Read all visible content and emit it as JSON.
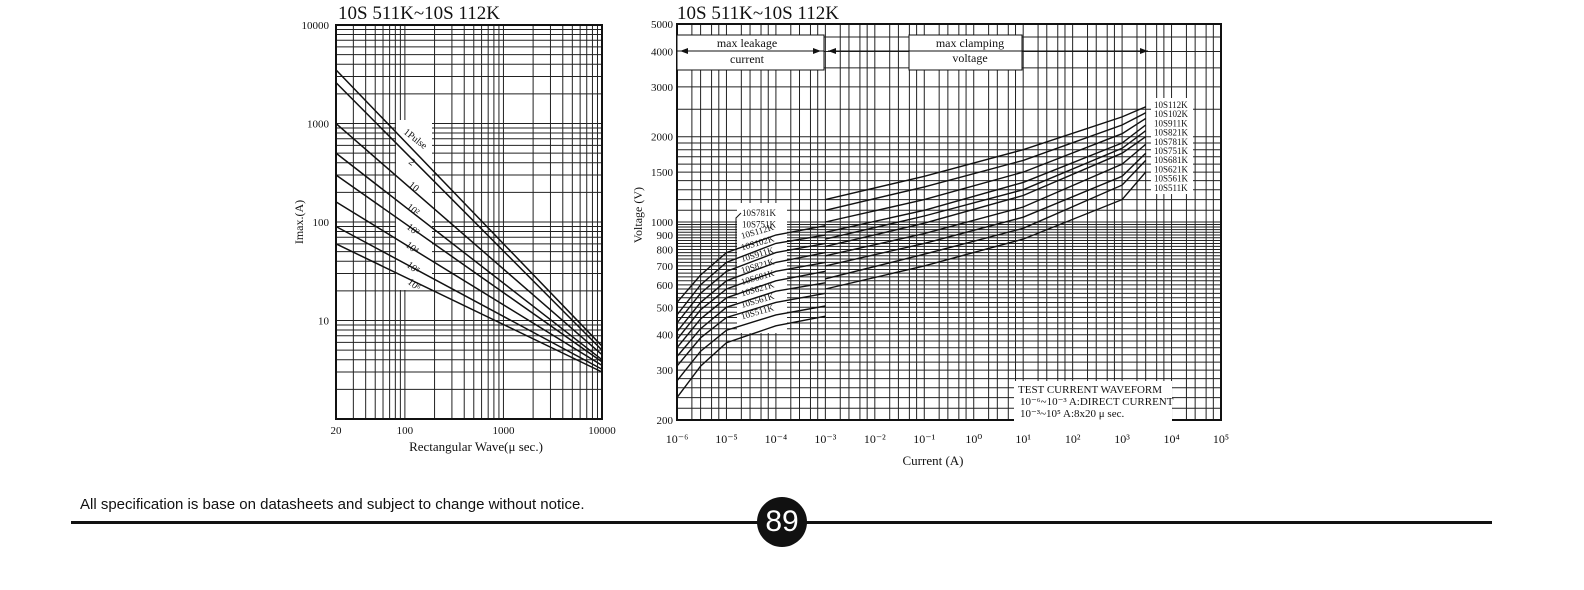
{
  "page": {
    "footer_note": "All specification is base on datasheets and subject to change without notice.",
    "page_number": "89"
  },
  "chart_data": [
    {
      "type": "line",
      "title": "10S  511K~10S  112K",
      "xlabel": "Rectangular Wave(μ  sec.)",
      "ylabel": "Imax.(A)",
      "xscale": "log",
      "yscale": "log",
      "xlim": [
        20,
        10000
      ],
      "ylim": [
        1,
        10000
      ],
      "xticks": [
        20,
        100,
        1000,
        10000
      ],
      "xtick_labels": [
        "20",
        "100",
        "1000",
        "10000"
      ],
      "yticks": [
        10,
        100,
        1000,
        10000
      ],
      "ytick_labels": [
        "10",
        "100",
        "1000",
        "10000"
      ],
      "grid": true,
      "series": [
        {
          "name": "1Pulse",
          "x": [
            20,
            10000
          ],
          "y": [
            3500,
            5.5
          ]
        },
        {
          "name": "2",
          "x": [
            20,
            10000
          ],
          "y": [
            2600,
            5
          ]
        },
        {
          "name": "10",
          "x": [
            20,
            10000
          ],
          "y": [
            1000,
            4.5
          ]
        },
        {
          "name": "10²",
          "x": [
            20,
            10000
          ],
          "y": [
            500,
            4
          ]
        },
        {
          "name": "10³",
          "x": [
            20,
            10000
          ],
          "y": [
            300,
            3.8
          ]
        },
        {
          "name": "10⁴",
          "x": [
            20,
            10000
          ],
          "y": [
            160,
            3.5
          ]
        },
        {
          "name": "10⁵",
          "x": [
            20,
            10000
          ],
          "y": [
            90,
            3.2
          ]
        },
        {
          "name": "10⁶",
          "x": [
            20,
            10000
          ],
          "y": [
            60,
            3
          ]
        }
      ]
    },
    {
      "type": "line",
      "title": "10S  511K~10S  112K",
      "xlabel": "Current (A)",
      "ylabel": "Voltage (V)",
      "xscale": "log",
      "yscale": "log",
      "xlim": [
        1e-06,
        100000
      ],
      "ylim": [
        200,
        5000
      ],
      "xtick_labels": [
        "10⁻⁶",
        "10⁻⁵",
        "10⁻⁴",
        "10⁻³",
        "10⁻²",
        "10⁻¹",
        "10⁰",
        "10¹",
        "10²",
        "10³",
        "10⁴",
        "10⁵"
      ],
      "yticks": [
        200,
        300,
        400,
        500,
        600,
        700,
        800,
        900,
        1000,
        1500,
        2000,
        3000,
        4000,
        5000
      ],
      "ytick_labels": [
        "200",
        "300",
        "400",
        "500",
        "600",
        "700",
        "800",
        "900",
        "1000",
        "1500",
        "2000",
        "3000",
        "4000",
        "5000"
      ],
      "grid": true,
      "annotations": {
        "max_leakage": [
          "max leakage",
          "current"
        ],
        "max_clamping": [
          "max clamping",
          "voltage"
        ],
        "test_waveform": [
          "TEST  CURRENT  WAVEFORM",
          "10⁻⁶~10⁻³  A:DIRECT  CURRENT",
          "10⁻³~10⁵  A:8x20  μ sec."
        ]
      },
      "leakage_series": [
        {
          "name": "10S781K",
          "x": [
            1e-06,
            3e-06,
            1e-05,
            0.0001,
            0.001
          ],
          "y": [
            520,
            650,
            780,
            900,
            970
          ]
        },
        {
          "name": "10S751K",
          "x": [
            1e-06,
            3e-06,
            1e-05,
            0.0001,
            0.001
          ],
          "y": [
            470,
            600,
            720,
            840,
            900
          ]
        },
        {
          "name": "10S112K",
          "x": [
            1e-06,
            3e-06,
            1e-05,
            0.0001,
            0.001
          ],
          "y": [
            440,
            560,
            670,
            780,
            840
          ]
        },
        {
          "name": "10S102K",
          "x": [
            1e-06,
            3e-06,
            1e-05,
            0.0001,
            0.001
          ],
          "y": [
            410,
            520,
            620,
            720,
            780
          ]
        },
        {
          "name": "10S911K",
          "x": [
            1e-06,
            3e-06,
            1e-05,
            0.0001,
            0.001
          ],
          "y": [
            385,
            490,
            580,
            670,
            720
          ]
        },
        {
          "name": "10S821K",
          "x": [
            1e-06,
            3e-06,
            1e-05,
            0.0001,
            0.001
          ],
          "y": [
            360,
            455,
            540,
            620,
            670
          ]
        },
        {
          "name": "10S681K",
          "x": [
            1e-06,
            3e-06,
            1e-05,
            0.0001,
            0.001
          ],
          "y": [
            335,
            420,
            500,
            570,
            610
          ]
        },
        {
          "name": "10S621K",
          "x": [
            1e-06,
            3e-06,
            1e-05,
            0.0001,
            0.001
          ],
          "y": [
            310,
            390,
            460,
            520,
            560
          ]
        },
        {
          "name": "10S561K",
          "x": [
            1e-06,
            3e-06,
            1e-05,
            0.0001,
            0.001
          ],
          "y": [
            275,
            350,
            415,
            470,
            505
          ]
        },
        {
          "name": "10S511K",
          "x": [
            1e-06,
            3e-06,
            1e-05,
            0.0001,
            0.001
          ],
          "y": [
            240,
            310,
            375,
            430,
            465
          ]
        }
      ],
      "clamping_series": [
        {
          "name": "10S112K",
          "x": [
            0.001,
            0.1,
            10,
            1000,
            3000
          ],
          "y": [
            1200,
            1450,
            1800,
            2350,
            2550
          ]
        },
        {
          "name": "10S102K",
          "x": [
            0.001,
            0.1,
            10,
            1000,
            3000
          ],
          "y": [
            1100,
            1330,
            1650,
            2200,
            2430
          ]
        },
        {
          "name": "10S911K",
          "x": [
            0.001,
            0.1,
            10,
            1000,
            3000
          ],
          "y": [
            1000,
            1200,
            1500,
            2050,
            2320
          ]
        },
        {
          "name": "10S821K",
          "x": [
            0.001,
            0.1,
            10,
            1000,
            3000
          ],
          "y": [
            920,
            1100,
            1380,
            1900,
            2200
          ]
        },
        {
          "name": "10S781K",
          "x": [
            0.001,
            0.1,
            10,
            1000,
            3000
          ],
          "y": [
            870,
            1050,
            1300,
            1820,
            2100
          ]
        },
        {
          "name": "10S751K",
          "x": [
            0.001,
            0.1,
            10,
            1000,
            3000
          ],
          "y": [
            820,
            990,
            1240,
            1750,
            2000
          ]
        },
        {
          "name": "10S681K",
          "x": [
            0.001,
            0.1,
            10,
            1000,
            3000
          ],
          "y": [
            760,
            910,
            1130,
            1600,
            1880
          ]
        },
        {
          "name": "10S621K",
          "x": [
            0.001,
            0.1,
            10,
            1000,
            3000
          ],
          "y": [
            700,
            840,
            1040,
            1450,
            1750
          ]
        },
        {
          "name": "10S561K",
          "x": [
            0.001,
            0.1,
            10,
            1000,
            3000
          ],
          "y": [
            630,
            770,
            950,
            1350,
            1650
          ]
        },
        {
          "name": "10S511K",
          "x": [
            0.001,
            0.1,
            10,
            1000,
            3000
          ],
          "y": [
            580,
            700,
            870,
            1200,
            1500
          ]
        }
      ]
    }
  ]
}
